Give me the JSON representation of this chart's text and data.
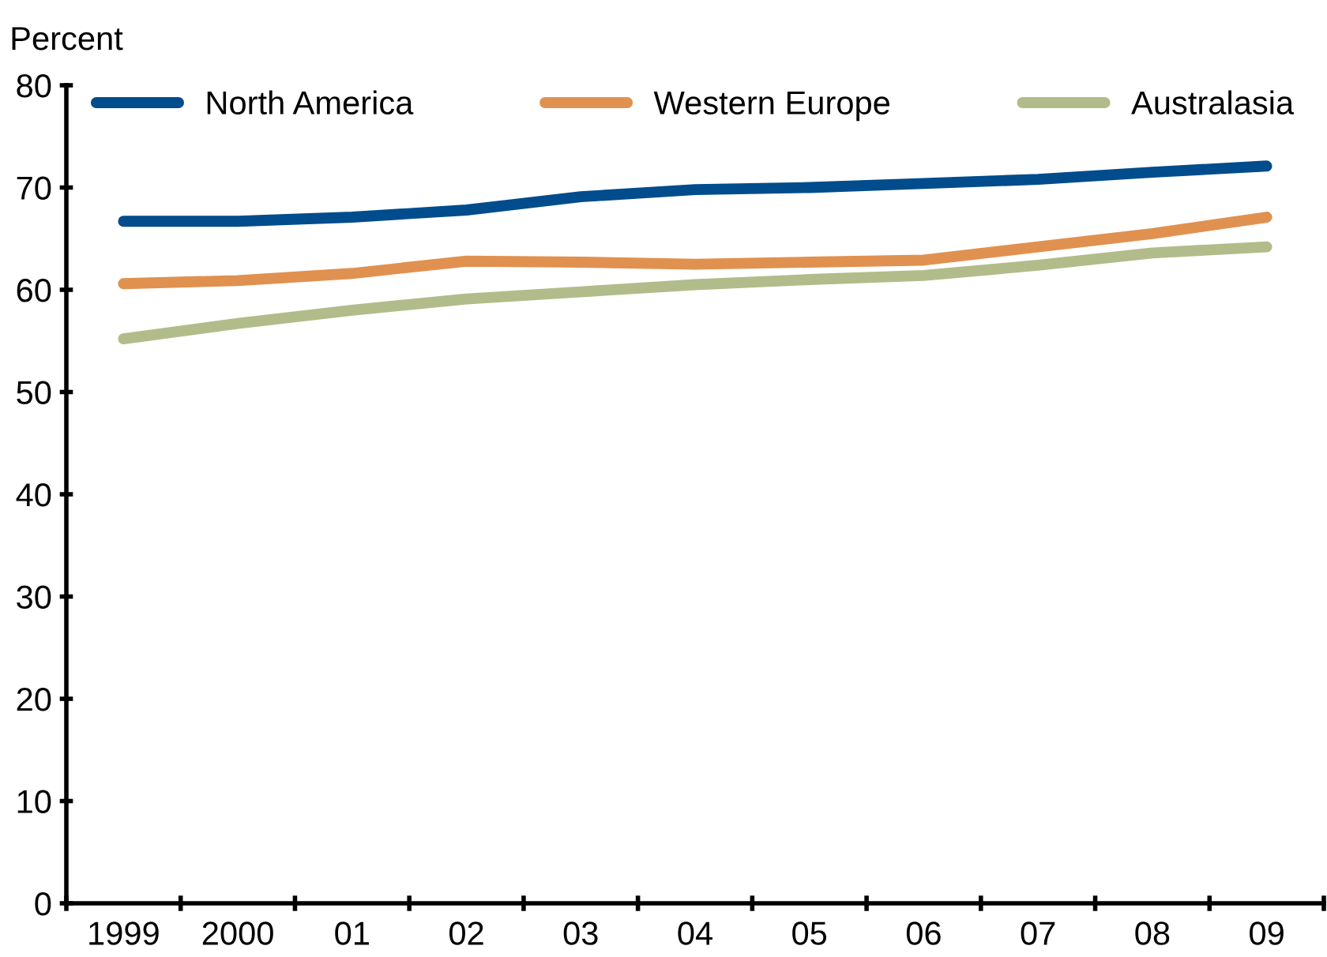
{
  "chart_data": {
    "type": "line",
    "ylabel": "Percent",
    "categories": [
      "1999",
      "2000",
      "01",
      "02",
      "03",
      "04",
      "05",
      "06",
      "07",
      "08",
      "09"
    ],
    "series": [
      {
        "name": "North America",
        "color": "#004c8c",
        "values": [
          66.7,
          66.7,
          67.1,
          67.8,
          69.1,
          69.8,
          70.0,
          70.4,
          70.8,
          71.5,
          72.1
        ]
      },
      {
        "name": "Western Europe",
        "color": "#e09150",
        "values": [
          60.6,
          60.9,
          61.6,
          62.8,
          62.7,
          62.5,
          62.7,
          62.9,
          64.2,
          65.5,
          67.1
        ]
      },
      {
        "name": "Australasia",
        "color": "#b2bc8a",
        "values": [
          55.2,
          56.7,
          58.0,
          59.1,
          59.8,
          60.5,
          61.0,
          61.4,
          62.4,
          63.6,
          64.2
        ]
      }
    ],
    "ylim": [
      0,
      80
    ],
    "yticks": [
      0,
      10,
      20,
      30,
      40,
      50,
      60,
      70,
      80
    ],
    "grid": false,
    "legend": "top",
    "marker": "none",
    "line_style": "solid"
  }
}
